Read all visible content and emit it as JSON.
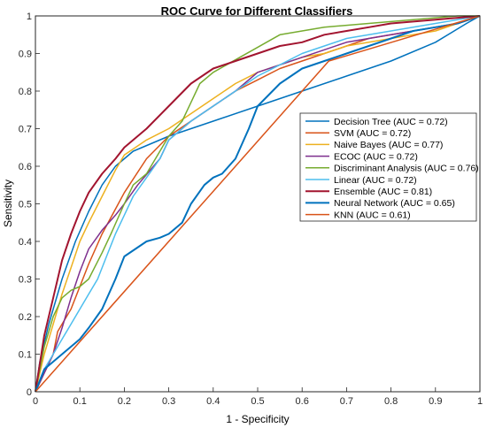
{
  "chart_data": {
    "type": "line",
    "title": "ROC Curve for Different Classifiers",
    "xlabel": "1 - Specificity",
    "ylabel": "Sensitivity",
    "xlim": [
      0,
      1
    ],
    "ylim": [
      0,
      1
    ],
    "xticks": [
      0,
      0.1,
      0.2,
      0.3,
      0.4,
      0.5,
      0.6,
      0.7,
      0.8,
      0.9,
      1
    ],
    "yticks": [
      0,
      0.1,
      0.2,
      0.3,
      0.4,
      0.5,
      0.6,
      0.7,
      0.8,
      0.9,
      1
    ],
    "xtick_labels": [
      "0",
      "0.1",
      "0.2",
      "0.3",
      "0.4",
      "0.5",
      "0.6",
      "0.7",
      "0.8",
      "0.9",
      "1"
    ],
    "ytick_labels": [
      "0",
      "0.1",
      "0.2",
      "0.3",
      "0.4",
      "0.5",
      "0.6",
      "0.7",
      "0.8",
      "0.9",
      "1"
    ],
    "grid": false,
    "legend_position": "right",
    "series": [
      {
        "name": "Decision Tree (AUC = 0.72)",
        "color": "#0072BD",
        "width": 1.5,
        "x": [
          0,
          0.01,
          0.03,
          0.06,
          0.09,
          0.12,
          0.15,
          0.18,
          0.2,
          0.22,
          0.3,
          0.4,
          0.5,
          0.6,
          0.7,
          0.8,
          0.9,
          0.97,
          1
        ],
        "y": [
          0,
          0.08,
          0.18,
          0.3,
          0.4,
          0.48,
          0.55,
          0.6,
          0.62,
          0.64,
          0.68,
          0.72,
          0.76,
          0.8,
          0.84,
          0.88,
          0.93,
          0.98,
          1
        ]
      },
      {
        "name": "SVM (AUC = 0.72)",
        "color": "#D95319",
        "width": 1.5,
        "x": [
          0,
          0.02,
          0.04,
          0.05,
          0.08,
          0.1,
          0.12,
          0.15,
          0.2,
          0.25,
          0.3,
          0.35,
          0.4,
          0.45,
          0.5,
          0.55,
          0.6,
          0.65,
          0.7,
          0.75,
          0.8,
          0.85,
          0.9,
          0.95,
          1
        ],
        "y": [
          0,
          0.05,
          0.1,
          0.16,
          0.22,
          0.28,
          0.34,
          0.42,
          0.53,
          0.62,
          0.68,
          0.72,
          0.76,
          0.8,
          0.83,
          0.86,
          0.88,
          0.9,
          0.92,
          0.94,
          0.95,
          0.96,
          0.97,
          0.98,
          1
        ]
      },
      {
        "name": "Naive Bayes (AUC = 0.77)",
        "color": "#EDB120",
        "width": 1.5,
        "x": [
          0,
          0.02,
          0.04,
          0.06,
          0.08,
          0.1,
          0.12,
          0.15,
          0.18,
          0.2,
          0.25,
          0.3,
          0.35,
          0.4,
          0.45,
          0.5,
          0.55,
          0.6,
          0.65,
          0.7,
          0.75,
          0.8,
          0.85,
          0.9,
          0.95,
          1
        ],
        "y": [
          0,
          0.1,
          0.18,
          0.26,
          0.33,
          0.4,
          0.45,
          0.52,
          0.59,
          0.63,
          0.67,
          0.7,
          0.74,
          0.78,
          0.82,
          0.85,
          0.87,
          0.89,
          0.9,
          0.92,
          0.93,
          0.94,
          0.95,
          0.96,
          0.98,
          1
        ]
      },
      {
        "name": "ECOC (AUC = 0.72)",
        "color": "#7E2F8E",
        "width": 1.5,
        "x": [
          0,
          0.02,
          0.04,
          0.06,
          0.08,
          0.1,
          0.12,
          0.15,
          0.18,
          0.2,
          0.23,
          0.28,
          0.3,
          0.35,
          0.4,
          0.45,
          0.5,
          0.55,
          0.6,
          0.65,
          0.7,
          0.75,
          0.8,
          0.85,
          0.9,
          0.95,
          1
        ],
        "y": [
          0,
          0.05,
          0.1,
          0.17,
          0.25,
          0.32,
          0.38,
          0.43,
          0.47,
          0.5,
          0.55,
          0.62,
          0.67,
          0.72,
          0.76,
          0.8,
          0.85,
          0.87,
          0.89,
          0.91,
          0.93,
          0.94,
          0.95,
          0.96,
          0.97,
          0.98,
          1
        ]
      },
      {
        "name": "Discriminant Analysis (AUC = 0.76)",
        "color": "#77AC30",
        "width": 1.5,
        "x": [
          0,
          0.02,
          0.04,
          0.06,
          0.08,
          0.1,
          0.12,
          0.15,
          0.17,
          0.2,
          0.22,
          0.25,
          0.28,
          0.3,
          0.33,
          0.35,
          0.37,
          0.4,
          0.43,
          0.46,
          0.49,
          0.52,
          0.55,
          0.6,
          0.65,
          0.7,
          0.75,
          0.8,
          0.85,
          0.9,
          0.95,
          1
        ],
        "y": [
          0,
          0.12,
          0.2,
          0.25,
          0.27,
          0.28,
          0.3,
          0.37,
          0.42,
          0.5,
          0.55,
          0.58,
          0.64,
          0.68,
          0.72,
          0.77,
          0.82,
          0.85,
          0.87,
          0.89,
          0.91,
          0.93,
          0.95,
          0.96,
          0.97,
          0.975,
          0.98,
          0.985,
          0.99,
          0.995,
          1,
          1
        ]
      },
      {
        "name": "Linear (AUC = 0.72)",
        "color": "#4DBEEE",
        "width": 1.5,
        "x": [
          0,
          0.02,
          0.04,
          0.06,
          0.08,
          0.1,
          0.12,
          0.14,
          0.16,
          0.18,
          0.2,
          0.22,
          0.25,
          0.28,
          0.3,
          0.35,
          0.4,
          0.45,
          0.5,
          0.55,
          0.6,
          0.65,
          0.7,
          0.75,
          0.8,
          0.85,
          0.9,
          0.95,
          1
        ],
        "y": [
          0,
          0.06,
          0.1,
          0.14,
          0.18,
          0.22,
          0.26,
          0.3,
          0.36,
          0.42,
          0.47,
          0.52,
          0.57,
          0.62,
          0.67,
          0.72,
          0.76,
          0.8,
          0.84,
          0.87,
          0.9,
          0.92,
          0.94,
          0.95,
          0.96,
          0.97,
          0.98,
          0.99,
          1
        ]
      },
      {
        "name": "Ensemble (AUC = 0.81)",
        "color": "#A2142F",
        "width": 2,
        "x": [
          0,
          0.02,
          0.04,
          0.06,
          0.08,
          0.1,
          0.12,
          0.15,
          0.18,
          0.2,
          0.25,
          0.3,
          0.35,
          0.4,
          0.45,
          0.5,
          0.55,
          0.6,
          0.65,
          0.7,
          0.75,
          0.8,
          0.85,
          0.9,
          0.95,
          1
        ],
        "y": [
          0,
          0.15,
          0.25,
          0.35,
          0.42,
          0.48,
          0.53,
          0.58,
          0.62,
          0.65,
          0.7,
          0.76,
          0.82,
          0.86,
          0.88,
          0.9,
          0.92,
          0.93,
          0.95,
          0.96,
          0.97,
          0.98,
          0.985,
          0.99,
          0.995,
          1
        ]
      },
      {
        "name": "Neural Network (AUC = 0.65)",
        "color": "#0072BD",
        "width": 2,
        "x": [
          0,
          0.02,
          0.04,
          0.06,
          0.08,
          0.1,
          0.12,
          0.15,
          0.18,
          0.2,
          0.25,
          0.28,
          0.3,
          0.33,
          0.35,
          0.38,
          0.4,
          0.42,
          0.45,
          0.48,
          0.5,
          0.55,
          0.6,
          0.65,
          0.7,
          0.75,
          0.8,
          0.85,
          0.9,
          0.95,
          1
        ],
        "y": [
          0,
          0.06,
          0.08,
          0.1,
          0.12,
          0.14,
          0.17,
          0.22,
          0.3,
          0.36,
          0.4,
          0.41,
          0.42,
          0.45,
          0.5,
          0.55,
          0.57,
          0.58,
          0.62,
          0.7,
          0.76,
          0.82,
          0.86,
          0.88,
          0.9,
          0.92,
          0.94,
          0.96,
          0.97,
          0.98,
          1
        ]
      },
      {
        "name": "KNN (AUC = 0.61)",
        "color": "#D95319",
        "width": 1.5,
        "x": [
          0,
          0.33,
          0.66,
          1
        ],
        "y": [
          0,
          0.44,
          0.88,
          1
        ]
      }
    ]
  }
}
